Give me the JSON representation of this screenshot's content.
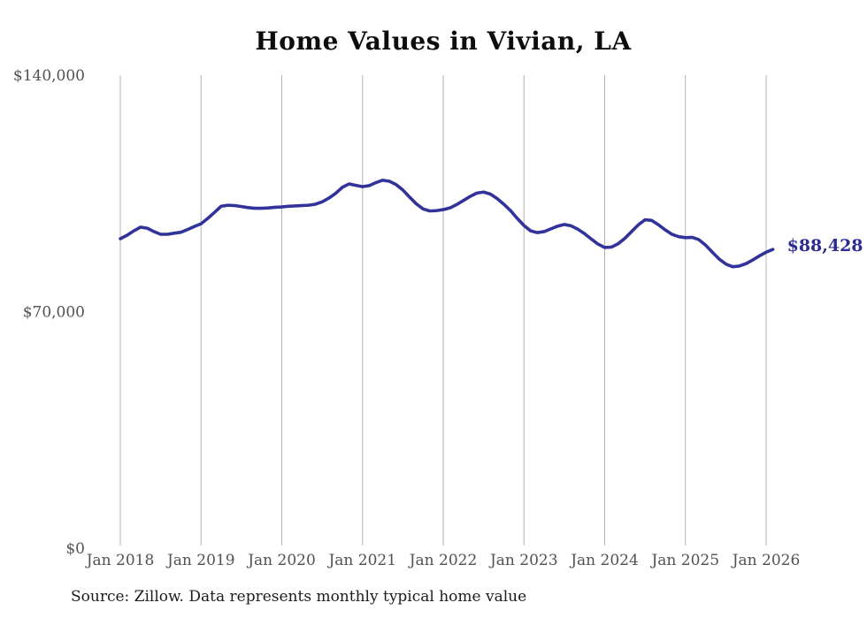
{
  "title": "Home Values in Vivian, LA",
  "source_note": "Source: Zillow. Data represents monthly typical home value",
  "last_value_label": "$88,428",
  "colors": {
    "line": "#32329b",
    "last_value_label": "#2d2d91",
    "gridline": "#b3b3b3",
    "axis_text": "#525252",
    "title_text": "#0d0d0d",
    "source_text": "#1c1c1c",
    "background": "#ffffff"
  },
  "chart_data": {
    "type": "line",
    "title": "Home Values in Vivian, LA",
    "xlabel": "",
    "ylabel": "",
    "ylim": [
      0,
      140000
    ],
    "grid": "vertical-only",
    "legend": "none",
    "y_ticks": [
      {
        "value": 0,
        "label": "$0"
      },
      {
        "value": 70000,
        "label": "$70,000"
      },
      {
        "value": 140000,
        "label": "$140,000"
      }
    ],
    "x_tick_labels": [
      "Jan 2018",
      "Jan 2019",
      "Jan 2020",
      "Jan 2021",
      "Jan 2022",
      "Jan 2023",
      "Jan 2024",
      "Jan 2025",
      "Jan 2026"
    ],
    "series": [
      {
        "name": "Typical home value",
        "start": "Jan 2018",
        "frequency": "monthly",
        "last_value": 88428,
        "last_value_label": "$88,428",
        "values": [
          91600,
          92600,
          93900,
          95000,
          94700,
          93700,
          92900,
          92900,
          93200,
          93500,
          94300,
          95200,
          96000,
          97600,
          99400,
          101200,
          101500,
          101400,
          101100,
          100800,
          100600,
          100600,
          100700,
          100900,
          101000,
          101200,
          101300,
          101400,
          101500,
          101800,
          102500,
          103600,
          105000,
          106800,
          107800,
          107400,
          107000,
          107300,
          108200,
          108900,
          108600,
          107600,
          106000,
          103900,
          101900,
          100400,
          99800,
          99900,
          100200,
          100700,
          101700,
          102900,
          104100,
          105100,
          105400,
          104800,
          103500,
          101800,
          99900,
          97600,
          95500,
          93900,
          93400,
          93700,
          94500,
          95300,
          95800,
          95400,
          94400,
          93100,
          91500,
          90000,
          89000,
          89100,
          90100,
          91700,
          93700,
          95700,
          97200,
          97000,
          95700,
          94200,
          92900,
          92200,
          91900,
          92000,
          91300,
          89700,
          87600,
          85600,
          84100,
          83300,
          83500,
          84200,
          85300,
          86500,
          87600,
          88428
        ]
      }
    ]
  }
}
